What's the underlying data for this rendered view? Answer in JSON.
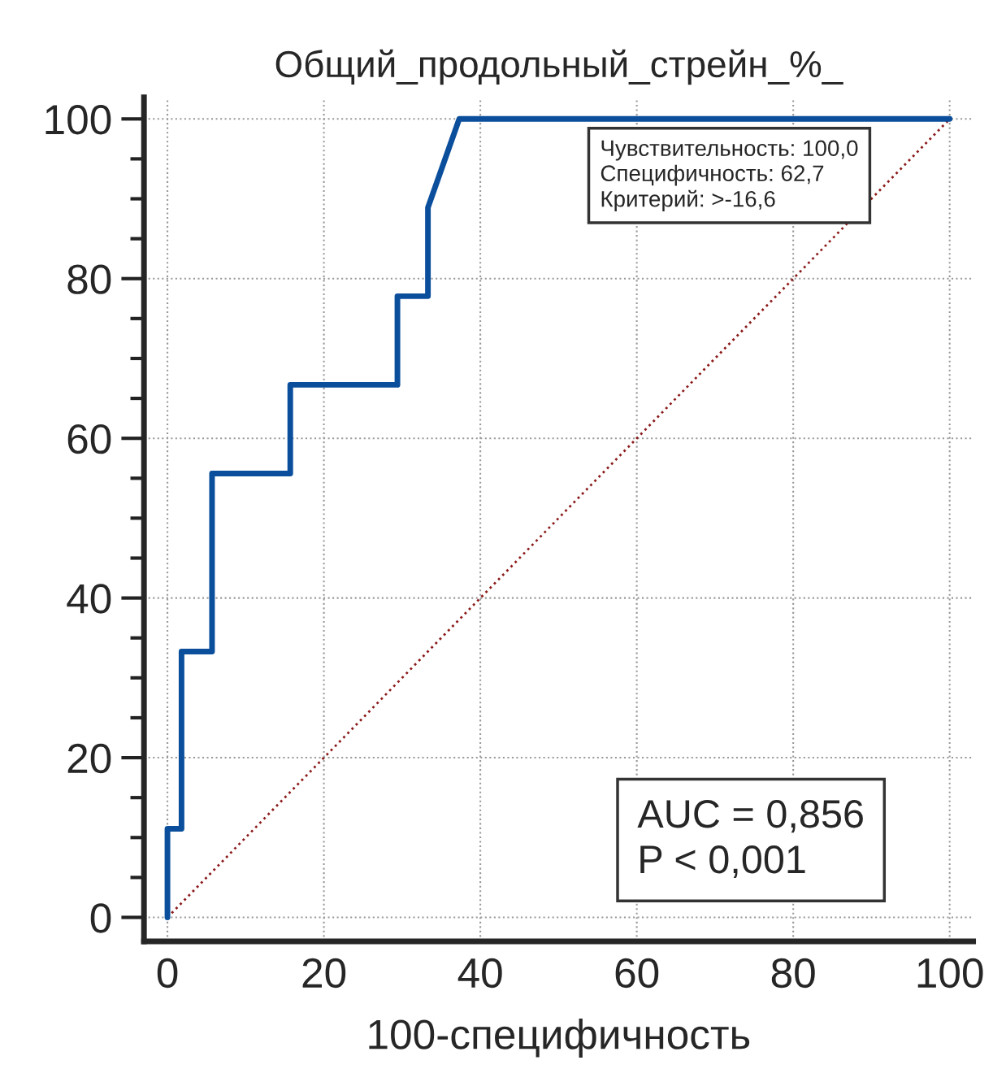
{
  "chart_data": {
    "type": "step",
    "title": "Общий_продольный_стрейн_%_",
    "xlabel": "100-специфичность",
    "series": [
      {
        "x": [
          0,
          0,
          1.8,
          1.8,
          5.7,
          5.7,
          15.7,
          15.7,
          29.4,
          29.4,
          33.3,
          33.3,
          37.3,
          100
        ],
        "values": [
          0,
          11.1,
          11.1,
          33.3,
          33.3,
          55.6,
          55.6,
          66.7,
          66.7,
          77.8,
          77.8,
          88.9,
          100,
          100
        ],
        "color": "#0b4f9c",
        "line_style": "solid"
      },
      {
        "type": "line",
        "x": [
          0,
          100
        ],
        "values": [
          0,
          100
        ],
        "color": "#8b1a1a",
        "line_style": "dotted"
      }
    ],
    "xlim": [
      -3,
      103
    ],
    "ylim": [
      -3,
      102.7
    ],
    "xticks": [
      0,
      20,
      40,
      60,
      80,
      100
    ],
    "yticks": [
      0,
      20,
      40,
      60,
      80,
      100
    ],
    "grid": true,
    "legend": false,
    "marker": "none",
    "annotations": [
      "Чувствительность: 100,0\nСпецифичность: 62,7\nКритерий: >-16,6",
      "AUC = 0,856\nP < 0,001"
    ]
  }
}
